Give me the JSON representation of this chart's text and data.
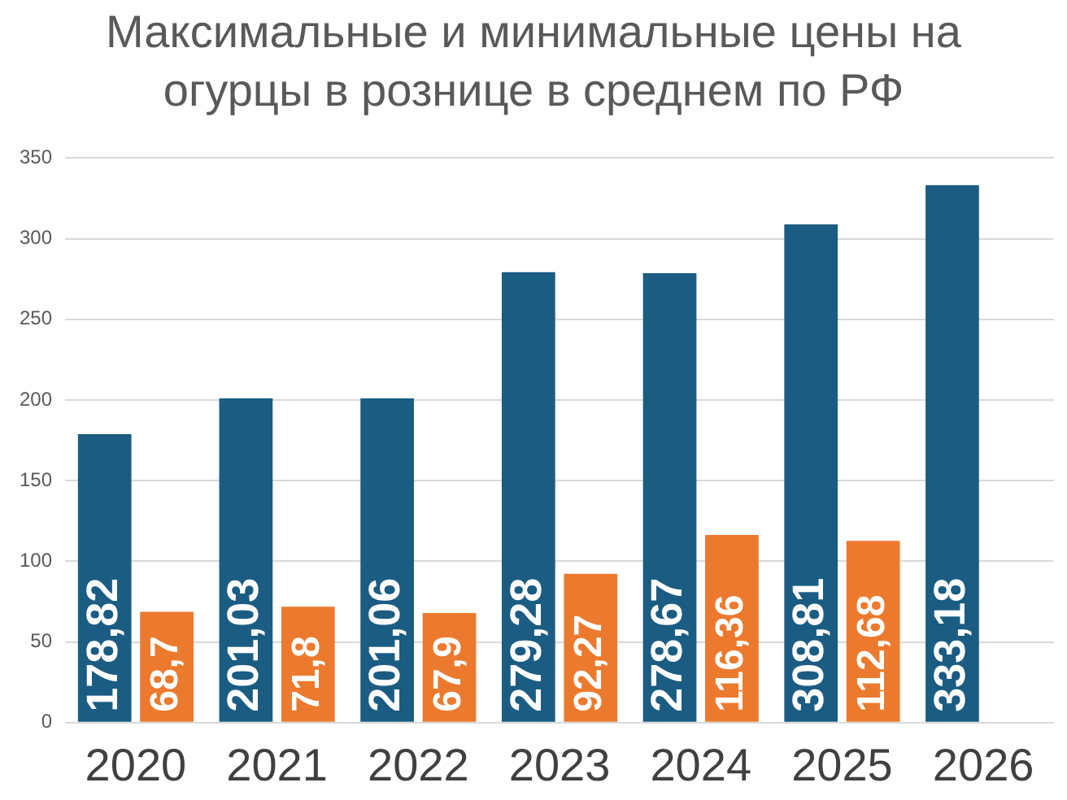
{
  "chart_data": {
    "type": "bar",
    "title": "Максимальные и минимальные цены на огурцы в рознице в среднем по РФ",
    "categories": [
      "2020",
      "2021",
      "2022",
      "2023",
      "2024",
      "2025",
      "2026"
    ],
    "series": [
      {
        "color": "#1b5c83",
        "values": [
          178.82,
          201.03,
          201.06,
          279.28,
          278.67,
          308.81,
          333.18
        ],
        "value_labels": [
          "178,82",
          "201,03",
          "201,06",
          "279,28",
          "278,67",
          "308,81",
          "333,18"
        ]
      },
      {
        "color": "#ec7a2e",
        "values": [
          68.7,
          71.8,
          67.9,
          92.27,
          116.36,
          112.68,
          null
        ],
        "value_labels": [
          "68,7",
          "71,8",
          "67,9",
          "92,27",
          "116,36",
          "112,68",
          null
        ]
      }
    ],
    "ylim": [
      0,
      350
    ],
    "yticks": [
      0,
      50,
      100,
      150,
      200,
      250,
      300,
      350
    ],
    "grid": "y",
    "legend": false
  }
}
